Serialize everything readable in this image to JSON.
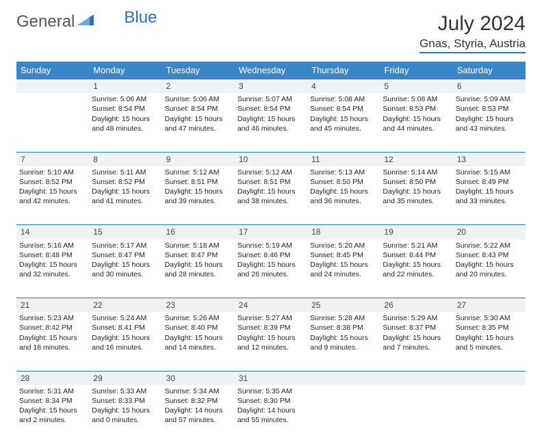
{
  "logo": {
    "text1": "General",
    "text2": "Blue"
  },
  "title": "July 2024",
  "location": "Gnas, Styria, Austria",
  "colors": {
    "header_bg": "#3b86c6",
    "header_text": "#ffffff",
    "accent": "#2d72b8",
    "daynum_bg": "#eef2f5"
  },
  "weekdays": [
    "Sunday",
    "Monday",
    "Tuesday",
    "Wednesday",
    "Thursday",
    "Friday",
    "Saturday"
  ],
  "weeks": [
    {
      "nums": [
        "",
        "1",
        "2",
        "3",
        "4",
        "5",
        "6"
      ],
      "cells": [
        null,
        {
          "sunrise": "5:06 AM",
          "sunset": "8:54 PM",
          "daylight": "15 hours and 48 minutes."
        },
        {
          "sunrise": "5:06 AM",
          "sunset": "8:54 PM",
          "daylight": "15 hours and 47 minutes."
        },
        {
          "sunrise": "5:07 AM",
          "sunset": "8:54 PM",
          "daylight": "15 hours and 46 minutes."
        },
        {
          "sunrise": "5:08 AM",
          "sunset": "8:54 PM",
          "daylight": "15 hours and 45 minutes."
        },
        {
          "sunrise": "5:08 AM",
          "sunset": "8:53 PM",
          "daylight": "15 hours and 44 minutes."
        },
        {
          "sunrise": "5:09 AM",
          "sunset": "8:53 PM",
          "daylight": "15 hours and 43 minutes."
        }
      ]
    },
    {
      "nums": [
        "7",
        "8",
        "9",
        "10",
        "11",
        "12",
        "13"
      ],
      "cells": [
        {
          "sunrise": "5:10 AM",
          "sunset": "8:52 PM",
          "daylight": "15 hours and 42 minutes."
        },
        {
          "sunrise": "5:11 AM",
          "sunset": "8:52 PM",
          "daylight": "15 hours and 41 minutes."
        },
        {
          "sunrise": "5:12 AM",
          "sunset": "8:51 PM",
          "daylight": "15 hours and 39 minutes."
        },
        {
          "sunrise": "5:12 AM",
          "sunset": "8:51 PM",
          "daylight": "15 hours and 38 minutes."
        },
        {
          "sunrise": "5:13 AM",
          "sunset": "8:50 PM",
          "daylight": "15 hours and 36 minutes."
        },
        {
          "sunrise": "5:14 AM",
          "sunset": "8:50 PM",
          "daylight": "15 hours and 35 minutes."
        },
        {
          "sunrise": "5:15 AM",
          "sunset": "8:49 PM",
          "daylight": "15 hours and 33 minutes."
        }
      ]
    },
    {
      "nums": [
        "14",
        "15",
        "16",
        "17",
        "18",
        "19",
        "20"
      ],
      "cells": [
        {
          "sunrise": "5:16 AM",
          "sunset": "8:48 PM",
          "daylight": "15 hours and 32 minutes."
        },
        {
          "sunrise": "5:17 AM",
          "sunset": "8:47 PM",
          "daylight": "15 hours and 30 minutes."
        },
        {
          "sunrise": "5:18 AM",
          "sunset": "8:47 PM",
          "daylight": "15 hours and 28 minutes."
        },
        {
          "sunrise": "5:19 AM",
          "sunset": "8:46 PM",
          "daylight": "15 hours and 26 minutes."
        },
        {
          "sunrise": "5:20 AM",
          "sunset": "8:45 PM",
          "daylight": "15 hours and 24 minutes."
        },
        {
          "sunrise": "5:21 AM",
          "sunset": "8:44 PM",
          "daylight": "15 hours and 22 minutes."
        },
        {
          "sunrise": "5:22 AM",
          "sunset": "8:43 PM",
          "daylight": "15 hours and 20 minutes."
        }
      ]
    },
    {
      "nums": [
        "21",
        "22",
        "23",
        "24",
        "25",
        "26",
        "27"
      ],
      "cells": [
        {
          "sunrise": "5:23 AM",
          "sunset": "8:42 PM",
          "daylight": "15 hours and 18 minutes."
        },
        {
          "sunrise": "5:24 AM",
          "sunset": "8:41 PM",
          "daylight": "15 hours and 16 minutes."
        },
        {
          "sunrise": "5:26 AM",
          "sunset": "8:40 PM",
          "daylight": "15 hours and 14 minutes."
        },
        {
          "sunrise": "5:27 AM",
          "sunset": "8:39 PM",
          "daylight": "15 hours and 12 minutes."
        },
        {
          "sunrise": "5:28 AM",
          "sunset": "8:38 PM",
          "daylight": "15 hours and 9 minutes."
        },
        {
          "sunrise": "5:29 AM",
          "sunset": "8:37 PM",
          "daylight": "15 hours and 7 minutes."
        },
        {
          "sunrise": "5:30 AM",
          "sunset": "8:35 PM",
          "daylight": "15 hours and 5 minutes."
        }
      ]
    },
    {
      "nums": [
        "28",
        "29",
        "30",
        "31",
        "",
        "",
        ""
      ],
      "cells": [
        {
          "sunrise": "5:31 AM",
          "sunset": "8:34 PM",
          "daylight": "15 hours and 2 minutes."
        },
        {
          "sunrise": "5:33 AM",
          "sunset": "8:33 PM",
          "daylight": "15 hours and 0 minutes."
        },
        {
          "sunrise": "5:34 AM",
          "sunset": "8:32 PM",
          "daylight": "14 hours and 57 minutes."
        },
        {
          "sunrise": "5:35 AM",
          "sunset": "8:30 PM",
          "daylight": "14 hours and 55 minutes."
        },
        null,
        null,
        null
      ]
    }
  ],
  "labels": {
    "sunrise": "Sunrise:",
    "sunset": "Sunset:",
    "daylight": "Daylight:"
  }
}
